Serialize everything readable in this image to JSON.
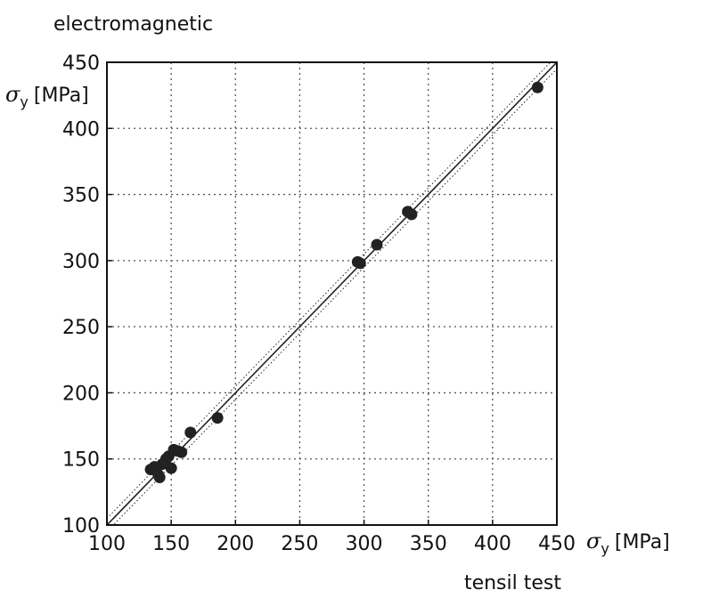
{
  "chart_data": {
    "type": "scatter",
    "title": "electromagnetic",
    "xlabel": "tensil test",
    "x_axis_label": "σy [MPa]",
    "y_axis_label": "σy [MPa]",
    "y_axis_label_parts": {
      "symbol": "σ",
      "sub": "y",
      "unit": "[MPa]"
    },
    "x_axis_label_parts": {
      "symbol": "σ",
      "sub": "y",
      "unit": "[MPa]"
    },
    "xlim": [
      100,
      450
    ],
    "ylim": [
      100,
      450
    ],
    "x_ticks": [
      100,
      150,
      200,
      250,
      300,
      350,
      400,
      450
    ],
    "y_ticks": [
      100,
      150,
      200,
      250,
      300,
      350,
      400,
      450
    ],
    "grid": true,
    "grid_style": "dotted",
    "reference_line": {
      "type": "identity",
      "style": "solid"
    },
    "band_lines": {
      "offset": 5,
      "style": "dotted"
    },
    "colors": {
      "points": "#222222",
      "lines": "#222222",
      "grid": "#555555"
    },
    "points": [
      {
        "x": 134,
        "y": 142
      },
      {
        "x": 137,
        "y": 144
      },
      {
        "x": 140,
        "y": 138
      },
      {
        "x": 141,
        "y": 136
      },
      {
        "x": 143,
        "y": 146
      },
      {
        "x": 146,
        "y": 150
      },
      {
        "x": 148,
        "y": 152
      },
      {
        "x": 150,
        "y": 143
      },
      {
        "x": 152,
        "y": 157
      },
      {
        "x": 155,
        "y": 156
      },
      {
        "x": 158,
        "y": 155
      },
      {
        "x": 165,
        "y": 170
      },
      {
        "x": 186,
        "y": 181
      },
      {
        "x": 295,
        "y": 299
      },
      {
        "x": 297,
        "y": 298
      },
      {
        "x": 310,
        "y": 312
      },
      {
        "x": 334,
        "y": 337
      },
      {
        "x": 337,
        "y": 335
      },
      {
        "x": 435,
        "y": 431
      }
    ]
  }
}
